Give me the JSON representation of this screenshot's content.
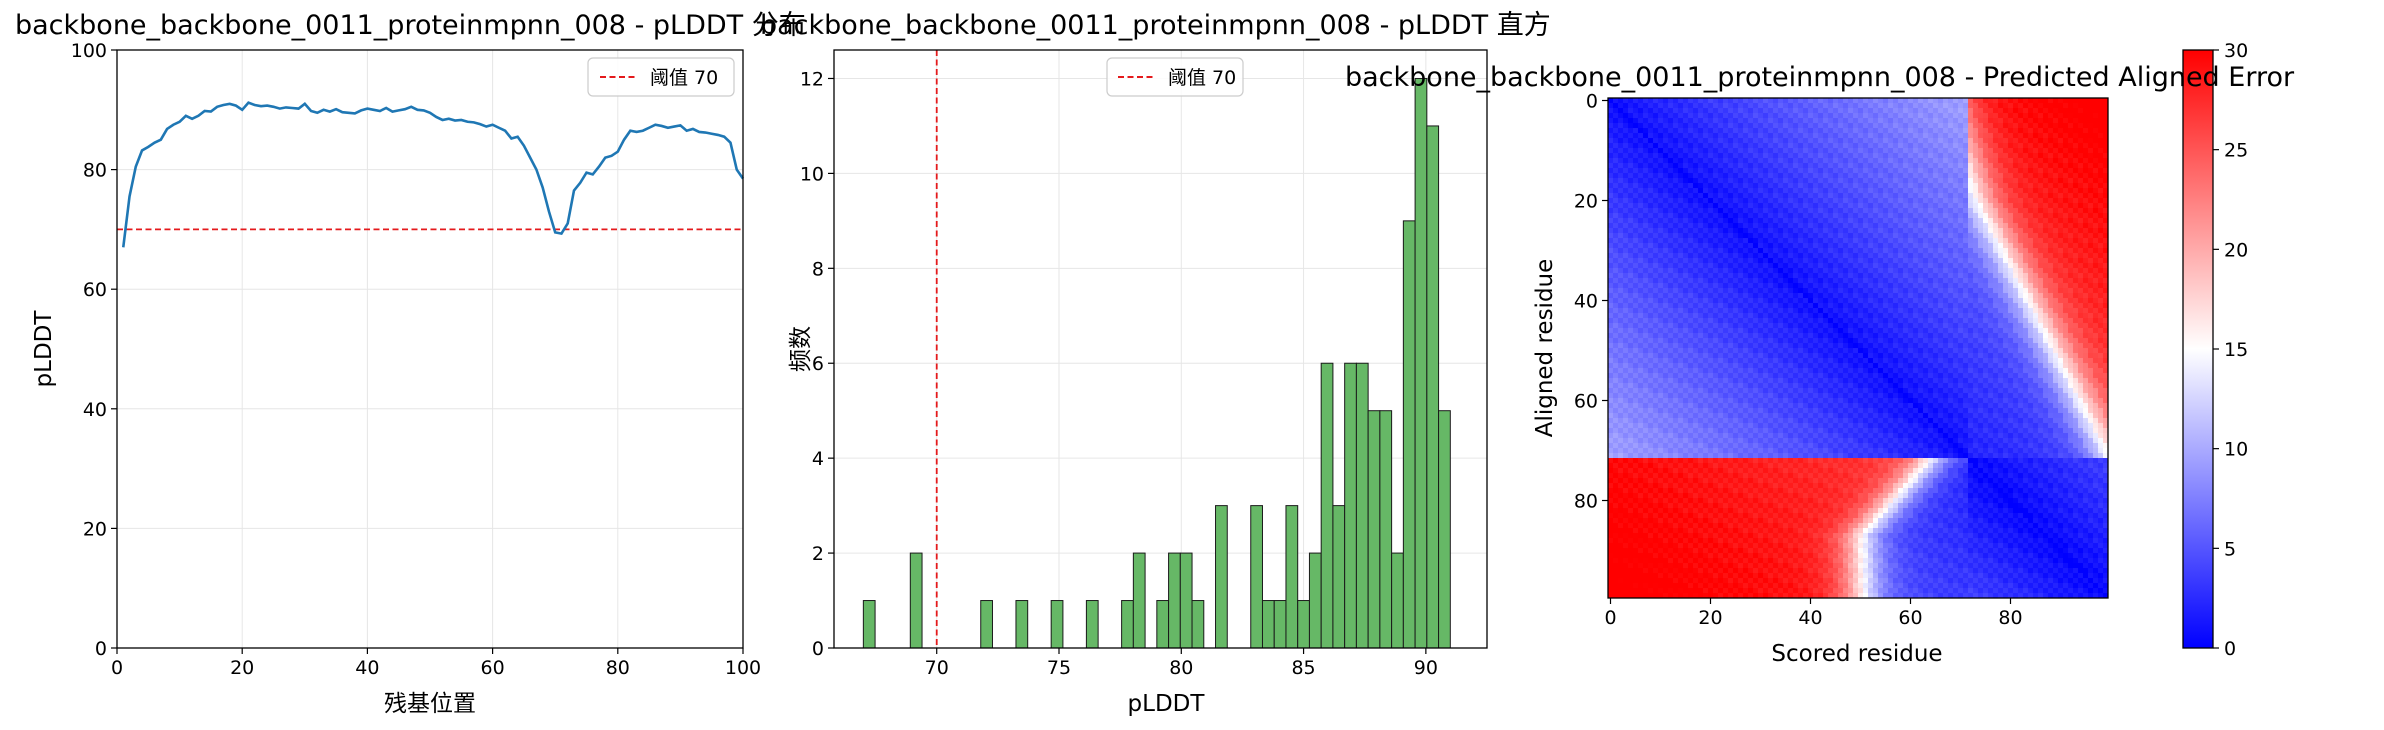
{
  "chart_data": [
    {
      "type": "line",
      "title": "backbone_backbone_0011_proteinmpnn_008 - pLDDT 分布",
      "xlabel": "残基位置",
      "ylabel": "pLDDT",
      "xlim": [
        0,
        100
      ],
      "ylim": [
        0,
        100
      ],
      "xticks": [
        0,
        20,
        40,
        60,
        80,
        100
      ],
      "yticks": [
        0,
        20,
        40,
        60,
        80,
        100
      ],
      "grid": true,
      "legend_position": "top-right",
      "line_color": "#1f77b4",
      "threshold": {
        "value": 70,
        "label": "阈值 70",
        "color": "#e41a1c"
      },
      "x": [
        1,
        2,
        3,
        4,
        5,
        6,
        7,
        8,
        9,
        10,
        11,
        12,
        13,
        14,
        15,
        16,
        17,
        18,
        19,
        20,
        21,
        22,
        23,
        24,
        25,
        26,
        27,
        28,
        29,
        30,
        31,
        32,
        33,
        34,
        35,
        36,
        37,
        38,
        39,
        40,
        41,
        42,
        43,
        44,
        45,
        46,
        47,
        48,
        49,
        50,
        51,
        52,
        53,
        54,
        55,
        56,
        57,
        58,
        59,
        60,
        61,
        62,
        63,
        64,
        65,
        66,
        67,
        68,
        69,
        70,
        71,
        72,
        73,
        74,
        75,
        76,
        77,
        78,
        79,
        80,
        81,
        82,
        83,
        84,
        85,
        86,
        87,
        88,
        89,
        90,
        91,
        92,
        93,
        94,
        95,
        96,
        97,
        98,
        99,
        100
      ],
      "y": [
        67.0,
        75.5,
        80.5,
        83.2,
        83.8,
        84.5,
        85.0,
        86.8,
        87.5,
        88.0,
        89.0,
        88.5,
        89.0,
        89.8,
        89.7,
        90.5,
        90.8,
        91.0,
        90.7,
        90.0,
        91.2,
        90.8,
        90.6,
        90.7,
        90.5,
        90.2,
        90.4,
        90.3,
        90.2,
        91.0,
        89.8,
        89.5,
        90.0,
        89.7,
        90.1,
        89.6,
        89.5,
        89.4,
        89.9,
        90.2,
        90.0,
        89.8,
        90.3,
        89.7,
        89.9,
        90.1,
        90.5,
        90.0,
        89.9,
        89.5,
        88.8,
        88.3,
        88.5,
        88.2,
        88.3,
        88.0,
        87.9,
        87.6,
        87.2,
        87.5,
        87.0,
        86.5,
        85.2,
        85.5,
        84.0,
        82.0,
        80.0,
        77.0,
        73.0,
        69.5,
        69.3,
        71.0,
        76.5,
        77.8,
        79.5,
        79.2,
        80.5,
        82.0,
        82.3,
        83.0,
        85.0,
        86.5,
        86.3,
        86.5,
        87.0,
        87.5,
        87.3,
        87.0,
        87.2,
        87.4,
        86.5,
        86.8,
        86.3,
        86.2,
        86.0,
        85.8,
        85.5,
        84.5,
        80.0,
        78.5
      ]
    },
    {
      "type": "bar",
      "title": "backbone_backbone_0011_proteinmpnn_008 - pLDDT 直方",
      "xlabel": "pLDDT",
      "ylabel": "频数",
      "xlim": [
        65.8,
        92.5
      ],
      "ylim": [
        0,
        12.6
      ],
      "xticks": [
        70,
        75,
        80,
        85,
        90
      ],
      "yticks": [
        0,
        2,
        4,
        6,
        8,
        10,
        12
      ],
      "grid": true,
      "legend_position": "top-center",
      "bar_color": "#66b866",
      "bar_edge_color": "#1a1a1a",
      "bin_width": 0.48,
      "threshold": {
        "value": 70,
        "label": "阈值 70",
        "color": "#e41a1c"
      },
      "bins": [
        {
          "x0": 67.0,
          "count": 1
        },
        {
          "x0": 68.92,
          "count": 2
        },
        {
          "x0": 71.8,
          "count": 1
        },
        {
          "x0": 73.24,
          "count": 1
        },
        {
          "x0": 74.68,
          "count": 1
        },
        {
          "x0": 76.12,
          "count": 1
        },
        {
          "x0": 77.56,
          "count": 1
        },
        {
          "x0": 78.04,
          "count": 2
        },
        {
          "x0": 79.0,
          "count": 1
        },
        {
          "x0": 79.48,
          "count": 2
        },
        {
          "x0": 79.96,
          "count": 2
        },
        {
          "x0": 80.44,
          "count": 1
        },
        {
          "x0": 81.4,
          "count": 3
        },
        {
          "x0": 82.84,
          "count": 3
        },
        {
          "x0": 83.32,
          "count": 1
        },
        {
          "x0": 83.8,
          "count": 1
        },
        {
          "x0": 84.28,
          "count": 3
        },
        {
          "x0": 84.76,
          "count": 1
        },
        {
          "x0": 85.24,
          "count": 2
        },
        {
          "x0": 85.72,
          "count": 6
        },
        {
          "x0": 86.2,
          "count": 3
        },
        {
          "x0": 86.68,
          "count": 6
        },
        {
          "x0": 87.16,
          "count": 6
        },
        {
          "x0": 87.64,
          "count": 5
        },
        {
          "x0": 88.12,
          "count": 5
        },
        {
          "x0": 88.6,
          "count": 2
        },
        {
          "x0": 89.08,
          "count": 9
        },
        {
          "x0": 89.56,
          "count": 12
        },
        {
          "x0": 90.04,
          "count": 11
        },
        {
          "x0": 90.52,
          "count": 5
        }
      ]
    },
    {
      "type": "heatmap",
      "title": "backbone_backbone_0011_proteinmpnn_008 - Predicted Aligned Error",
      "xlabel": "Scored residue",
      "ylabel": "Aligned residue",
      "n": 100,
      "xticks": [
        0,
        20,
        40,
        60,
        80
      ],
      "yticks": [
        0,
        20,
        40,
        60,
        80
      ],
      "colormap": "bwr",
      "colorbar": {
        "min": 0,
        "max": 30,
        "ticks": [
          0,
          5,
          10,
          15,
          20,
          25,
          30
        ]
      }
    }
  ]
}
